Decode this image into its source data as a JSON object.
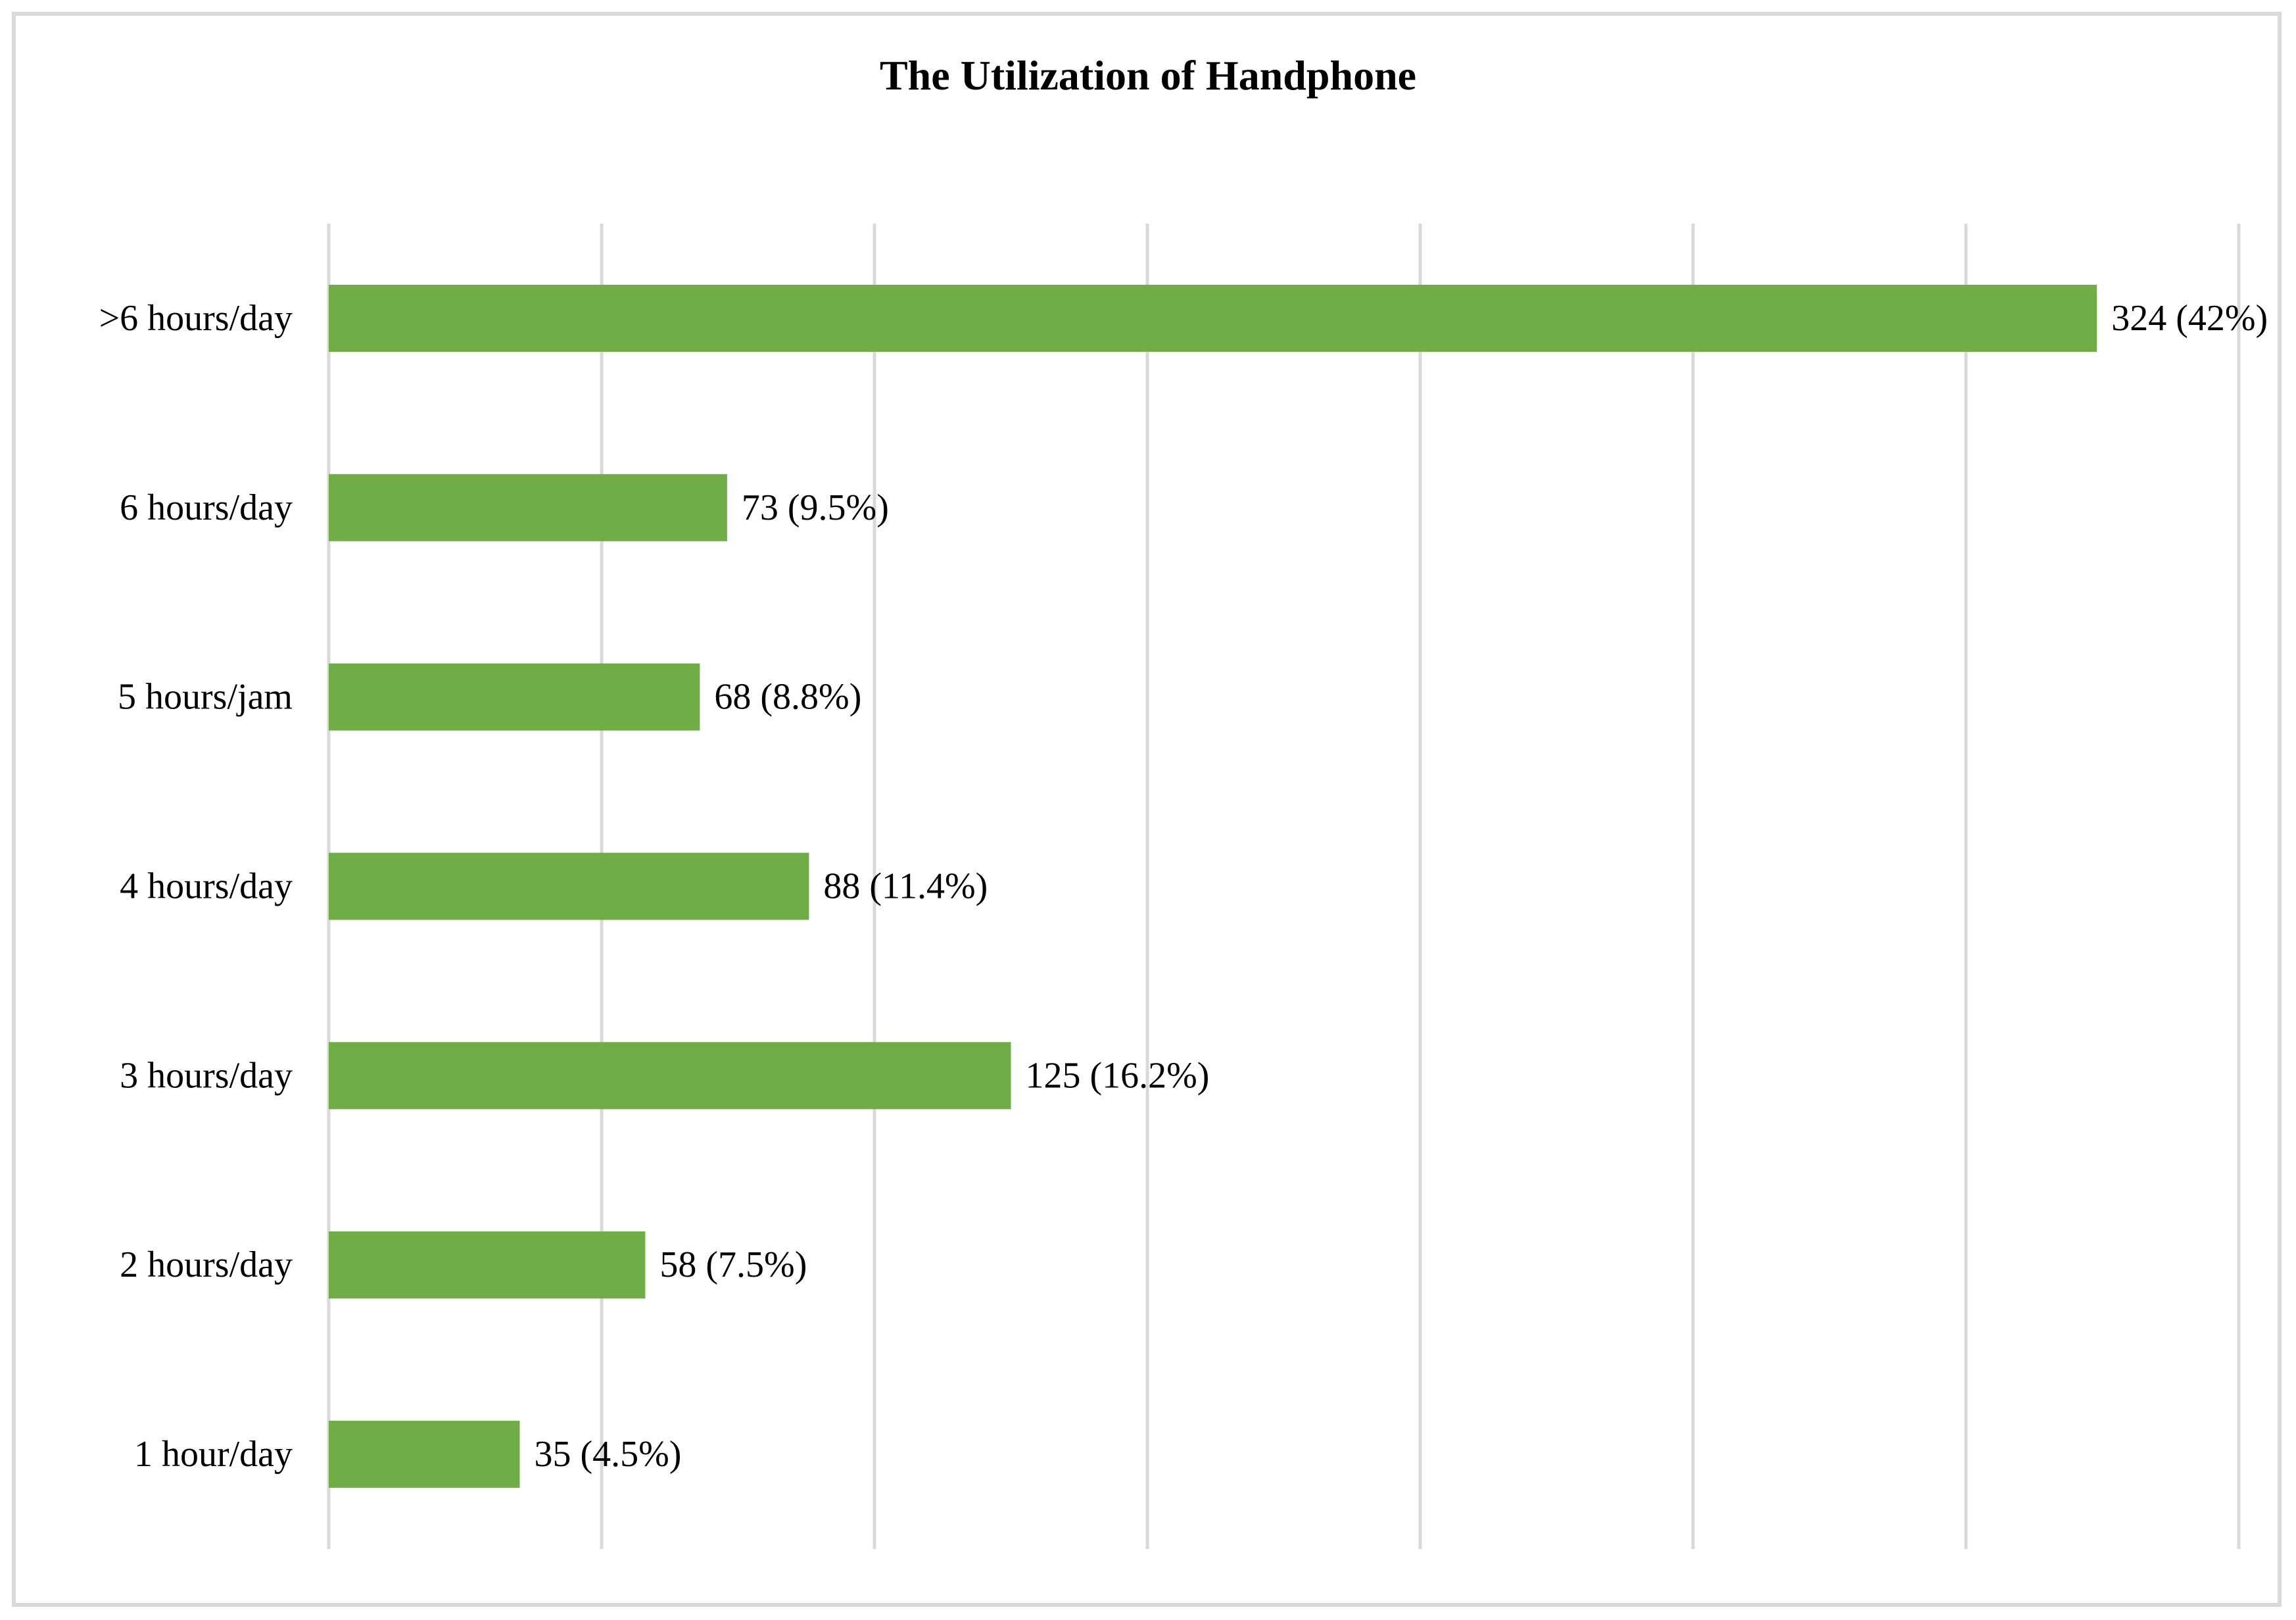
{
  "chart_data": {
    "type": "bar",
    "orientation": "horizontal",
    "title": "The Utilization of Handphone",
    "xlabel": "",
    "ylabel": "",
    "categories": [
      "1 hour/day",
      "2 hours/day",
      "3 hours/day",
      "4 hours/day",
      "5 hours/jam",
      "6 hours/day",
      ">6 hours/day"
    ],
    "values": [
      35,
      58,
      125,
      88,
      68,
      73,
      324
    ],
    "data_labels": [
      "35 (4.5%)",
      "58 (7.5%)",
      "125 (16.2%)",
      "88 (11.4%)",
      "68 (8.8%)",
      "73 (9.5%)",
      "324 (42%)"
    ],
    "xlim": [
      0,
      350
    ],
    "grid": true,
    "legend": "none",
    "bar_color": "#70ad47",
    "gridline_color": "#d9d9d9"
  }
}
